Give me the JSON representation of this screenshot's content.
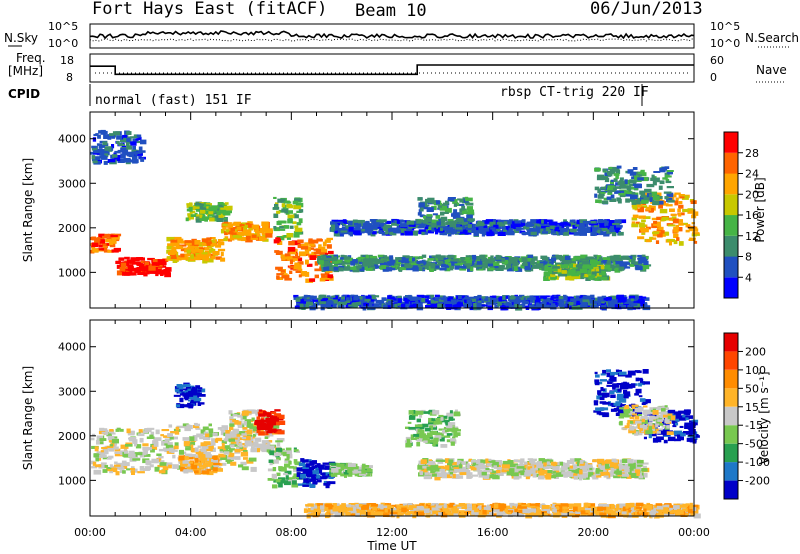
{
  "header": {
    "radar": "Fort Hays East (fitACF)",
    "beam": "Beam 10",
    "date": "06/Jun/2013"
  },
  "noise_panel": {
    "left_label": "N.Sky",
    "right_label": "N.Search",
    "left_ticks": [
      "10^5",
      "10^0"
    ],
    "right_ticks": [
      "10^5",
      "10^0"
    ]
  },
  "freq_panel": {
    "left_label_1": "Freq.",
    "left_label_2": "[MHz]",
    "left_ticks": [
      "18",
      "8"
    ],
    "right_label": "Nave",
    "right_ticks": [
      "60",
      "0"
    ],
    "freq_steps": [
      {
        "t": 0.0,
        "v": 14.0
      },
      {
        "t": 1.0,
        "v": 14.0
      },
      {
        "t": 1.0,
        "v": 10.5
      },
      {
        "t": 13.0,
        "v": 10.5
      },
      {
        "t": 13.0,
        "v": 14.5
      },
      {
        "t": 24.0,
        "v": 14.5
      }
    ]
  },
  "cpid": {
    "label": "CPID",
    "modes": [
      {
        "start": 0.0,
        "name": "normal (fast) 151 IF"
      },
      {
        "start": 22.0,
        "name": "rbsp CT-trig 220 IF"
      }
    ]
  },
  "chart_data": [
    {
      "type": "heatmap",
      "title": "",
      "xlabel": "",
      "ylabel": "Slant Range [km]",
      "xlim": [
        0,
        24
      ],
      "ylim": [
        200,
        4600
      ],
      "yticks": [
        1000,
        2000,
        3000,
        4000
      ],
      "colorbar": {
        "label": "Power [dB]",
        "ticks": [
          "4",
          "8",
          "12",
          "16",
          "20",
          "24",
          "28"
        ],
        "colors": [
          "#0000ff",
          "#2050c0",
          "#3c8c6c",
          "#46b446",
          "#c8c800",
          "#ffa500",
          "#ff6400",
          "#ff0000"
        ]
      },
      "regions": [
        {
          "t0": 0.0,
          "t1": 1.0,
          "r0": 1500,
          "r1": 1900,
          "level": 6
        },
        {
          "t0": 1.0,
          "t1": 3.0,
          "r0": 1000,
          "r1": 1350,
          "level": 7
        },
        {
          "t0": 3.0,
          "t1": 5.2,
          "r0": 1300,
          "r1": 1800,
          "level": 5
        },
        {
          "t0": 5.2,
          "t1": 7.0,
          "r0": 1750,
          "r1": 2150,
          "level": 5
        },
        {
          "t0": 7.2,
          "t1": 8.3,
          "r0": 1800,
          "r1": 2700,
          "level": 3
        },
        {
          "t0": 7.3,
          "t1": 9.5,
          "r0": 850,
          "r1": 1800,
          "level": 6
        },
        {
          "t0": 3.8,
          "t1": 5.4,
          "r0": 2200,
          "r1": 2600,
          "level": 3
        },
        {
          "t0": 9.0,
          "t1": 22.0,
          "r0": 1100,
          "r1": 1400,
          "level": 2
        },
        {
          "t0": 9.5,
          "t1": 21.0,
          "r0": 1900,
          "r1": 2200,
          "level": 1
        },
        {
          "t0": 13.0,
          "t1": 15.0,
          "r0": 2000,
          "r1": 2700,
          "level": 2
        },
        {
          "t0": 18.0,
          "t1": 20.5,
          "r0": 900,
          "r1": 1200,
          "level": 3
        },
        {
          "t0": 21.5,
          "t1": 24.0,
          "r0": 1700,
          "r1": 2800,
          "level": 5
        },
        {
          "t0": 20.0,
          "t1": 23.0,
          "r0": 2600,
          "r1": 3400,
          "level": 2
        },
        {
          "t0": 0.0,
          "t1": 2.0,
          "r0": 3500,
          "r1": 4200,
          "level": 1
        },
        {
          "t0": 8.0,
          "t1": 22.0,
          "r0": 250,
          "r1": 500,
          "level": 1
        }
      ]
    },
    {
      "type": "heatmap",
      "title": "",
      "xlabel": "Time UT",
      "ylabel": "Slant Range [km]",
      "xlim": [
        0,
        24
      ],
      "ylim": [
        200,
        4600
      ],
      "yticks": [
        1000,
        2000,
        3000,
        4000
      ],
      "xticks": [
        "00:00",
        "04:00",
        "08:00",
        "12:00",
        "16:00",
        "20:00",
        "00:00"
      ],
      "colorbar": {
        "label": "Velocity [m s⁻¹]",
        "ticks": [
          "200",
          "100",
          "50",
          "15",
          "-15",
          "-50",
          "-100",
          "-200"
        ],
        "colors": [
          "#0000c8",
          "#1e78c8",
          "#28a050",
          "#78c850",
          "#c8c8c8",
          "#ffb428",
          "#ff8c00",
          "#ff4600",
          "#e60000"
        ]
      },
      "regions": [
        {
          "t0": 0.0,
          "t1": 3.0,
          "r0": 1200,
          "r1": 2200,
          "level": 4
        },
        {
          "t0": 3.0,
          "t1": 6.5,
          "r0": 1300,
          "r1": 2300,
          "level": 4
        },
        {
          "t0": 3.5,
          "t1": 5.0,
          "r0": 1200,
          "r1": 1600,
          "level": 5
        },
        {
          "t0": 3.3,
          "t1": 4.3,
          "r0": 2700,
          "r1": 3200,
          "level": 0
        },
        {
          "t0": 5.5,
          "t1": 7.5,
          "r0": 1700,
          "r1": 2600,
          "level": 4
        },
        {
          "t0": 6.5,
          "t1": 7.5,
          "r0": 2100,
          "r1": 2600,
          "level": 8
        },
        {
          "t0": 7.0,
          "t1": 8.2,
          "r0": 900,
          "r1": 1800,
          "level": 3
        },
        {
          "t0": 8.2,
          "t1": 9.5,
          "r0": 900,
          "r1": 1500,
          "level": 0
        },
        {
          "t0": 9.5,
          "t1": 11.0,
          "r0": 1150,
          "r1": 1400,
          "level": 3
        },
        {
          "t0": 12.5,
          "t1": 14.5,
          "r0": 1800,
          "r1": 2600,
          "level": 3
        },
        {
          "t0": 13.0,
          "t1": 22.0,
          "r0": 1100,
          "r1": 1500,
          "level": 4
        },
        {
          "t0": 8.5,
          "t1": 24.0,
          "r0": 250,
          "r1": 500,
          "level": 5
        },
        {
          "t0": 20.0,
          "t1": 22.0,
          "r0": 2500,
          "r1": 3500,
          "level": 0
        },
        {
          "t0": 22.0,
          "t1": 24.0,
          "r0": 1900,
          "r1": 2600,
          "level": 0
        },
        {
          "t0": 21.0,
          "t1": 23.0,
          "r0": 2100,
          "r1": 2700,
          "level": 4
        }
      ]
    }
  ]
}
